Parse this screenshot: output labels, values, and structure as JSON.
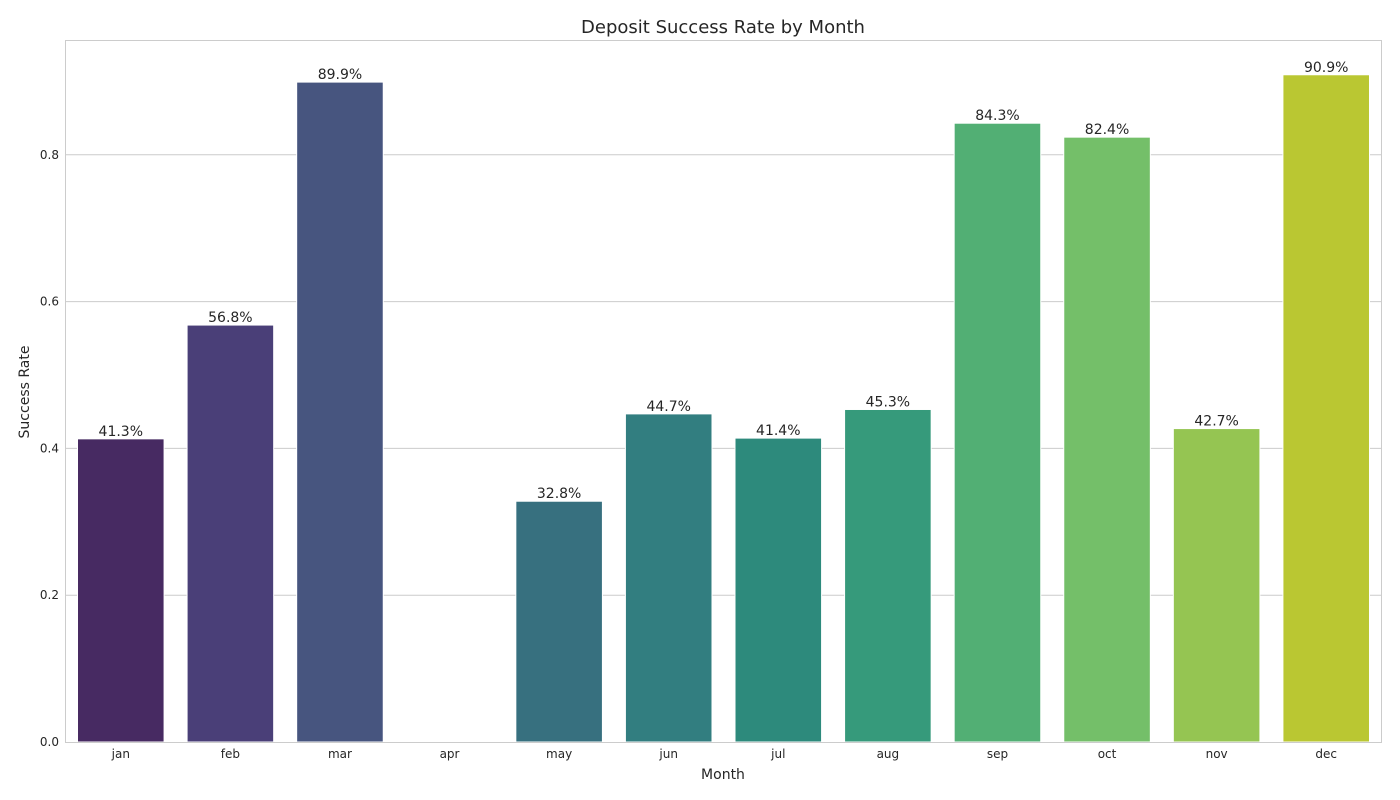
{
  "chart_data": {
    "type": "bar",
    "title": "Deposit Success Rate by Month",
    "xlabel": "Month",
    "ylabel": "Success Rate",
    "categories": [
      "jan",
      "feb",
      "mar",
      "apr",
      "may",
      "jun",
      "jul",
      "aug",
      "sep",
      "oct",
      "nov",
      "dec"
    ],
    "values": [
      0.413,
      0.568,
      0.899,
      0.0,
      0.328,
      0.447,
      0.414,
      0.453,
      0.843,
      0.824,
      0.427,
      0.909
    ],
    "data_labels": [
      "41.3%",
      "56.8%",
      "89.9%",
      "",
      "32.8%",
      "44.7%",
      "41.4%",
      "45.3%",
      "84.3%",
      "82.4%",
      "42.7%",
      "90.9%"
    ],
    "ylim": [
      0,
      0.955
    ],
    "yticks": [
      0.0,
      0.2,
      0.4,
      0.6,
      0.8
    ],
    "ytick_labels": [
      "0.0",
      "0.2",
      "0.4",
      "0.6",
      "0.8"
    ],
    "colors": [
      "#472A62",
      "#4A3F78",
      "#47557F",
      "#3F6880",
      "#37707F",
      "#327E80",
      "#2D8A7C",
      "#369A7B",
      "#52AF74",
      "#74BF69",
      "#95C552",
      "#BAC732"
    ],
    "grid": "y",
    "legend": "none"
  }
}
